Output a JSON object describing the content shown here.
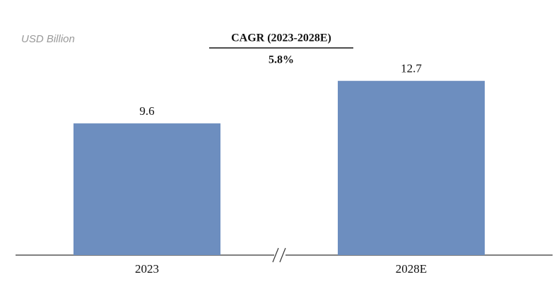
{
  "chart_data": {
    "type": "bar",
    "unit_label": "USD Billion",
    "cagr_title": "CAGR (2023-2028E)",
    "cagr_value": "5.8%",
    "categories": [
      "2023",
      "2028E"
    ],
    "values": [
      9.6,
      12.7
    ],
    "color": "#6d8ebf"
  }
}
